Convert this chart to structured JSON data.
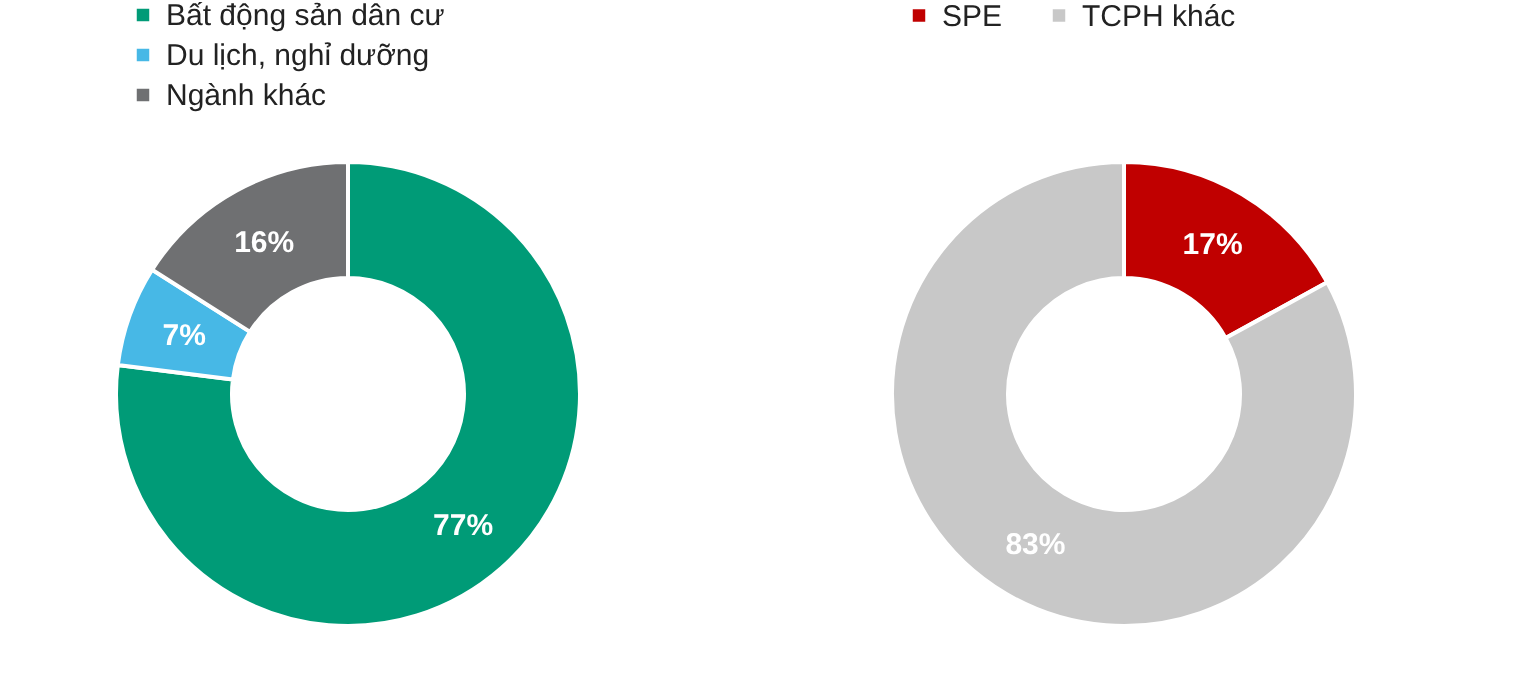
{
  "chart_data": [
    {
      "type": "donut",
      "categories": [
        "Bất động sản dân cư",
        "Du lịch, nghỉ dưỡng",
        "Ngành khác"
      ],
      "values": [
        77,
        7,
        16
      ],
      "colors": [
        "#009b77",
        "#47b8e6",
        "#6f7072"
      ],
      "value_labels": [
        "77%",
        "7%",
        "16%"
      ],
      "legend": "top left"
    },
    {
      "type": "donut",
      "categories": [
        "SPE",
        "TCPH khác"
      ],
      "values": [
        17,
        83
      ],
      "colors": [
        "#c00000",
        "#c8c8c8"
      ],
      "value_labels": [
        "17%",
        "83%"
      ],
      "legend": "top left"
    }
  ]
}
